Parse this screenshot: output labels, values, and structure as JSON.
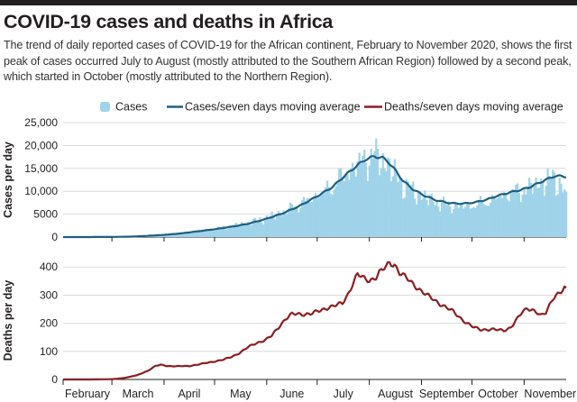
{
  "header": {
    "title": "COVID-19 cases and deaths in Africa",
    "subtitle": "The trend of daily reported cases of COVID-19 for the African continent, February to November 2020, shows the first peak of cases occurred July to August (mostly attributed to the Southern African Region) followed by a second peak, which started in October (mostly attributed to the Northern Region)."
  },
  "colors": {
    "cases_fill": "#9fd3ea",
    "cases_average": "#1d5f80",
    "deaths_average": "#8b1f22",
    "top_bar": "#231f20",
    "grid": "#d4d4d4"
  },
  "chart_data": [
    {
      "type": "area",
      "panel": "cases",
      "ylabel": "Cases per day",
      "ylim": [
        0,
        25000
      ],
      "yticks": [
        "25,000",
        "20,000",
        "15,000",
        "10,000",
        "5000",
        "0"
      ],
      "ytick_values": [
        25000,
        20000,
        15000,
        10000,
        5000,
        0
      ],
      "x_range_days": [
        0,
        299
      ],
      "legend": [
        "Cases",
        "Cases/seven days moving average"
      ],
      "legend_position": "top",
      "grid": true,
      "series": [
        {
          "name": "Cases",
          "style": "bars",
          "points": [
            [
              0,
              0
            ],
            [
              15,
              5
            ],
            [
              29,
              30
            ],
            [
              40,
              100
            ],
            [
              50,
              300
            ],
            [
              60,
              550
            ],
            [
              70,
              900
            ],
            [
              80,
              1400
            ],
            [
              90,
              1900
            ],
            [
              100,
              2500
            ],
            [
              110,
              3200
            ],
            [
              120,
              4300
            ],
            [
              130,
              5600
            ],
            [
              140,
              7300
            ],
            [
              150,
              9300
            ],
            [
              160,
              11500
            ],
            [
              165,
              13500
            ],
            [
              170,
              15000
            ],
            [
              175,
              16500
            ],
            [
              180,
              18000
            ],
            [
              185,
              18500
            ],
            [
              190,
              17500
            ],
            [
              193,
              16500
            ],
            [
              197,
              14500
            ],
            [
              202,
              12000
            ],
            [
              208,
              10500
            ],
            [
              215,
              9000
            ],
            [
              222,
              8000
            ],
            [
              230,
              7200
            ],
            [
              238,
              7000
            ],
            [
              245,
              7400
            ],
            [
              252,
              8000
            ],
            [
              258,
              9000
            ],
            [
              265,
              10000
            ],
            [
              272,
              10500
            ],
            [
              278,
              11500
            ],
            [
              285,
              12500
            ],
            [
              292,
              13500
            ],
            [
              296,
              12000
            ],
            [
              299,
              8500
            ]
          ]
        },
        {
          "name": "Cases/seven days moving average",
          "style": "line",
          "points": [
            [
              0,
              0
            ],
            [
              15,
              5
            ],
            [
              29,
              30
            ],
            [
              40,
              90
            ],
            [
              50,
              260
            ],
            [
              60,
              480
            ],
            [
              70,
              800
            ],
            [
              80,
              1250
            ],
            [
              90,
              1700
            ],
            [
              100,
              2250
            ],
            [
              110,
              2900
            ],
            [
              120,
              3900
            ],
            [
              130,
              5100
            ],
            [
              140,
              6700
            ],
            [
              150,
              8700
            ],
            [
              160,
              10900
            ],
            [
              165,
              12600
            ],
            [
              170,
              14200
            ],
            [
              175,
              15700
            ],
            [
              180,
              17000
            ],
            [
              185,
              17600
            ],
            [
              190,
              17300
            ],
            [
              193,
              16500
            ],
            [
              197,
              14800
            ],
            [
              202,
              12300
            ],
            [
              208,
              10400
            ],
            [
              215,
              9000
            ],
            [
              222,
              8000
            ],
            [
              230,
              7400
            ],
            [
              238,
              7300
            ],
            [
              245,
              7600
            ],
            [
              252,
              8200
            ],
            [
              258,
              9000
            ],
            [
              265,
              9700
            ],
            [
              272,
              10300
            ],
            [
              278,
              11000
            ],
            [
              285,
              12200
            ],
            [
              292,
              13300
            ],
            [
              296,
              13300
            ],
            [
              299,
              13200
            ]
          ]
        }
      ]
    },
    {
      "type": "line",
      "panel": "deaths",
      "ylabel": "Deaths per day",
      "ylim": [
        0,
        420
      ],
      "yticks": [
        "400",
        "300",
        "200",
        "100",
        "0"
      ],
      "ytick_values": [
        400,
        300,
        200,
        100,
        0
      ],
      "x_range_days": [
        0,
        299
      ],
      "legend": [
        "Deaths/seven days moving average"
      ],
      "legend_position": "top",
      "grid": true,
      "series": [
        {
          "name": "Deaths/seven days moving average",
          "points": [
            [
              0,
              0
            ],
            [
              15,
              0
            ],
            [
              29,
              1
            ],
            [
              36,
              5
            ],
            [
              44,
              15
            ],
            [
              50,
              30
            ],
            [
              55,
              48
            ],
            [
              58,
              52
            ],
            [
              62,
              48
            ],
            [
              68,
              47
            ],
            [
              75,
              48
            ],
            [
              82,
              55
            ],
            [
              88,
              62
            ],
            [
              95,
              70
            ],
            [
              100,
              80
            ],
            [
              105,
              95
            ],
            [
              110,
              115
            ],
            [
              115,
              130
            ],
            [
              120,
              140
            ],
            [
              124,
              155
            ],
            [
              128,
              185
            ],
            [
              132,
              215
            ],
            [
              136,
              232
            ],
            [
              142,
              232
            ],
            [
              148,
              235
            ],
            [
              153,
              245
            ],
            [
              158,
              258
            ],
            [
              163,
              265
            ],
            [
              166,
              270
            ],
            [
              169,
              300
            ],
            [
              172,
              340
            ],
            [
              175,
              375
            ],
            [
              178,
              360
            ],
            [
              182,
              352
            ],
            [
              186,
              365
            ],
            [
              188,
              380
            ],
            [
              192,
              400
            ],
            [
              194,
              415
            ],
            [
              197,
              410
            ],
            [
              200,
              380
            ],
            [
              204,
              360
            ],
            [
              208,
              340
            ],
            [
              212,
              320
            ],
            [
              216,
              300
            ],
            [
              220,
              285
            ],
            [
              224,
              270
            ],
            [
              228,
              255
            ],
            [
              232,
              240
            ],
            [
              236,
              220
            ],
            [
              240,
              200
            ],
            [
              244,
              185
            ],
            [
              248,
              178
            ],
            [
              254,
              178
            ],
            [
              258,
              176
            ],
            [
              262,
              175
            ],
            [
              266,
              185
            ],
            [
              270,
              215
            ],
            [
              273,
              240
            ],
            [
              276,
              255
            ],
            [
              280,
              245
            ],
            [
              284,
              225
            ],
            [
              287,
              238
            ],
            [
              289,
              265
            ],
            [
              291,
              290
            ],
            [
              293,
              300
            ],
            [
              296,
              310
            ],
            [
              298,
              322
            ],
            [
              299,
              318
            ]
          ]
        }
      ]
    }
  ],
  "x_axis": {
    "months": [
      "February",
      "March",
      "April",
      "May",
      "June",
      "July",
      "August",
      "September",
      "October",
      "November"
    ],
    "month_start_days": [
      0,
      29,
      60,
      90,
      121,
      151,
      182,
      213,
      243,
      274
    ]
  }
}
